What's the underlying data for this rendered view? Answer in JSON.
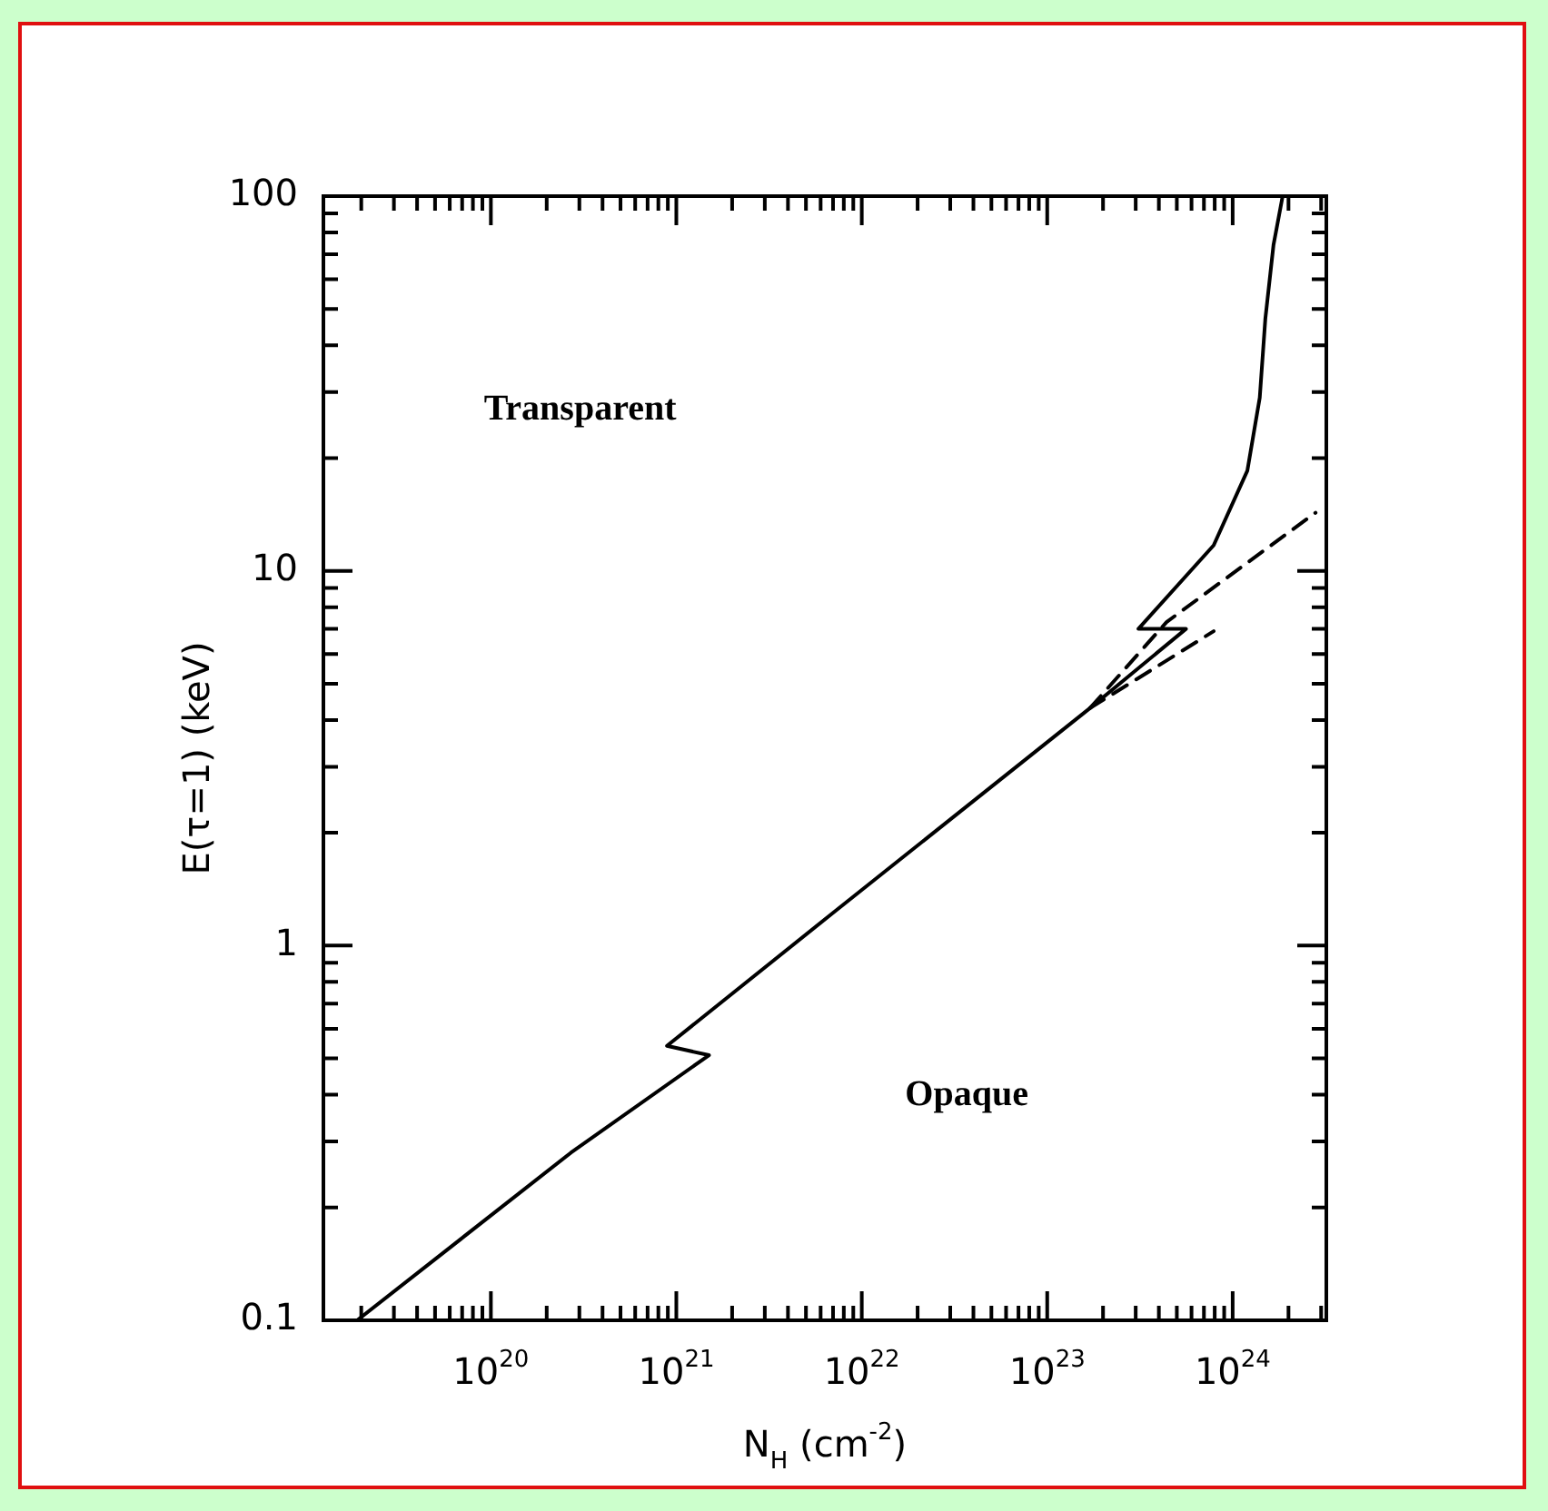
{
  "chart_data": {
    "type": "line",
    "xlabel": "N$_{H}$ (cm$^{-2}$)",
    "ylabel": "E(τ=1) (keV)",
    "log": "xy",
    "grid": false,
    "legend": false,
    "marker": "none",
    "xlim": [
      1.25e+19,
      3.2e+24
    ],
    "ylim": [
      0.1,
      100
    ],
    "xticks": [
      {
        "value": 2e+19,
        "label": null
      },
      {
        "value": 3e+19,
        "label": null
      },
      {
        "value": 4e+19,
        "label": null
      },
      {
        "value": 5e+19,
        "label": null
      },
      {
        "value": 6e+19,
        "label": null
      },
      {
        "value": 7e+19,
        "label": null
      },
      {
        "value": 8e+19,
        "label": null
      },
      {
        "value": 9e+19,
        "label": null
      },
      {
        "value": 1e+20,
        "label": "10$^{20}$"
      },
      {
        "value": 2e+20,
        "label": null
      },
      {
        "value": 3e+20,
        "label": null
      },
      {
        "value": 4e+20,
        "label": null
      },
      {
        "value": 5e+20,
        "label": null
      },
      {
        "value": 6e+20,
        "label": null
      },
      {
        "value": 7e+20,
        "label": null
      },
      {
        "value": 8e+20,
        "label": null
      },
      {
        "value": 9e+20,
        "label": null
      },
      {
        "value": 1e+21,
        "label": "10$^{21}$"
      },
      {
        "value": 2e+21,
        "label": null
      },
      {
        "value": 3e+21,
        "label": null
      },
      {
        "value": 4e+21,
        "label": null
      },
      {
        "value": 5e+21,
        "label": null
      },
      {
        "value": 6e+21,
        "label": null
      },
      {
        "value": 7e+21,
        "label": null
      },
      {
        "value": 8e+21,
        "label": null
      },
      {
        "value": 9e+21,
        "label": null
      },
      {
        "value": 1e+22,
        "label": "10$^{22}$"
      },
      {
        "value": 2e+22,
        "label": null
      },
      {
        "value": 3e+22,
        "label": null
      },
      {
        "value": 4e+22,
        "label": null
      },
      {
        "value": 5e+22,
        "label": null
      },
      {
        "value": 6e+22,
        "label": null
      },
      {
        "value": 7e+22,
        "label": null
      },
      {
        "value": 8e+22,
        "label": null
      },
      {
        "value": 9e+22,
        "label": null
      },
      {
        "value": 1e+23,
        "label": "10$^{23}$"
      },
      {
        "value": 2e+23,
        "label": null
      },
      {
        "value": 3e+23,
        "label": null
      },
      {
        "value": 4e+23,
        "label": null
      },
      {
        "value": 5e+23,
        "label": null
      },
      {
        "value": 6e+23,
        "label": null
      },
      {
        "value": 7e+23,
        "label": null
      },
      {
        "value": 8e+23,
        "label": null
      },
      {
        "value": 9e+23,
        "label": null
      },
      {
        "value": 1e+24,
        "label": "10$^{24}$"
      },
      {
        "value": 2e+24,
        "label": null
      },
      {
        "value": 3e+24,
        "label": null
      }
    ],
    "yticks": [
      {
        "value": 0.1,
        "label": "0.1"
      },
      {
        "value": 0.2,
        "label": null
      },
      {
        "value": 0.3,
        "label": null
      },
      {
        "value": 0.4,
        "label": null
      },
      {
        "value": 0.5,
        "label": null
      },
      {
        "value": 0.6,
        "label": null
      },
      {
        "value": 0.7,
        "label": null
      },
      {
        "value": 0.8,
        "label": null
      },
      {
        "value": 0.9,
        "label": null
      },
      {
        "value": 1,
        "label": "1"
      },
      {
        "value": 2,
        "label": null
      },
      {
        "value": 3,
        "label": null
      },
      {
        "value": 4,
        "label": null
      },
      {
        "value": 5,
        "label": null
      },
      {
        "value": 6,
        "label": null
      },
      {
        "value": 7,
        "label": null
      },
      {
        "value": 8,
        "label": null
      },
      {
        "value": 9,
        "label": null
      },
      {
        "value": 10,
        "label": "10"
      },
      {
        "value": 20,
        "label": null
      },
      {
        "value": 30,
        "label": null
      },
      {
        "value": 40,
        "label": null
      },
      {
        "value": 50,
        "label": null
      },
      {
        "value": 60,
        "label": null
      },
      {
        "value": 70,
        "label": null
      },
      {
        "value": 80,
        "label": null
      },
      {
        "value": 90,
        "label": null
      },
      {
        "value": 100,
        "label": "100"
      }
    ],
    "annotations": [
      "Transparent",
      "Opaque"
    ],
    "series": [
      {
        "color": "#000000",
        "line_style": "solid",
        "x": [
          1.9e+19,
          2.7e+20,
          1.5e+21,
          8.9e+20,
          7.1e+21,
          1.7e+23,
          5.6e+23,
          3.1e+23,
          7.9e+23,
          1.2e+24,
          1.4e+24,
          1.5e+24,
          1.66e+24,
          1.86e+24
        ],
        "values": [
          0.1,
          0.28,
          0.51,
          0.54,
          1.23,
          4.3,
          7.0,
          7.0,
          11.7,
          18.5,
          29,
          47,
          74,
          100
        ]
      },
      {
        "color": "#000000",
        "line_style": "dashed",
        "x": [
          1.7e+23,
          4.4e+23,
          2.8e+24
        ],
        "values": [
          4.3,
          7.3,
          14.3
        ]
      },
      {
        "color": "#000000",
        "line_style": "dashed",
        "x": [
          1.7e+23,
          7.9e+23
        ],
        "values": [
          4.3,
          6.9
        ]
      }
    ]
  }
}
